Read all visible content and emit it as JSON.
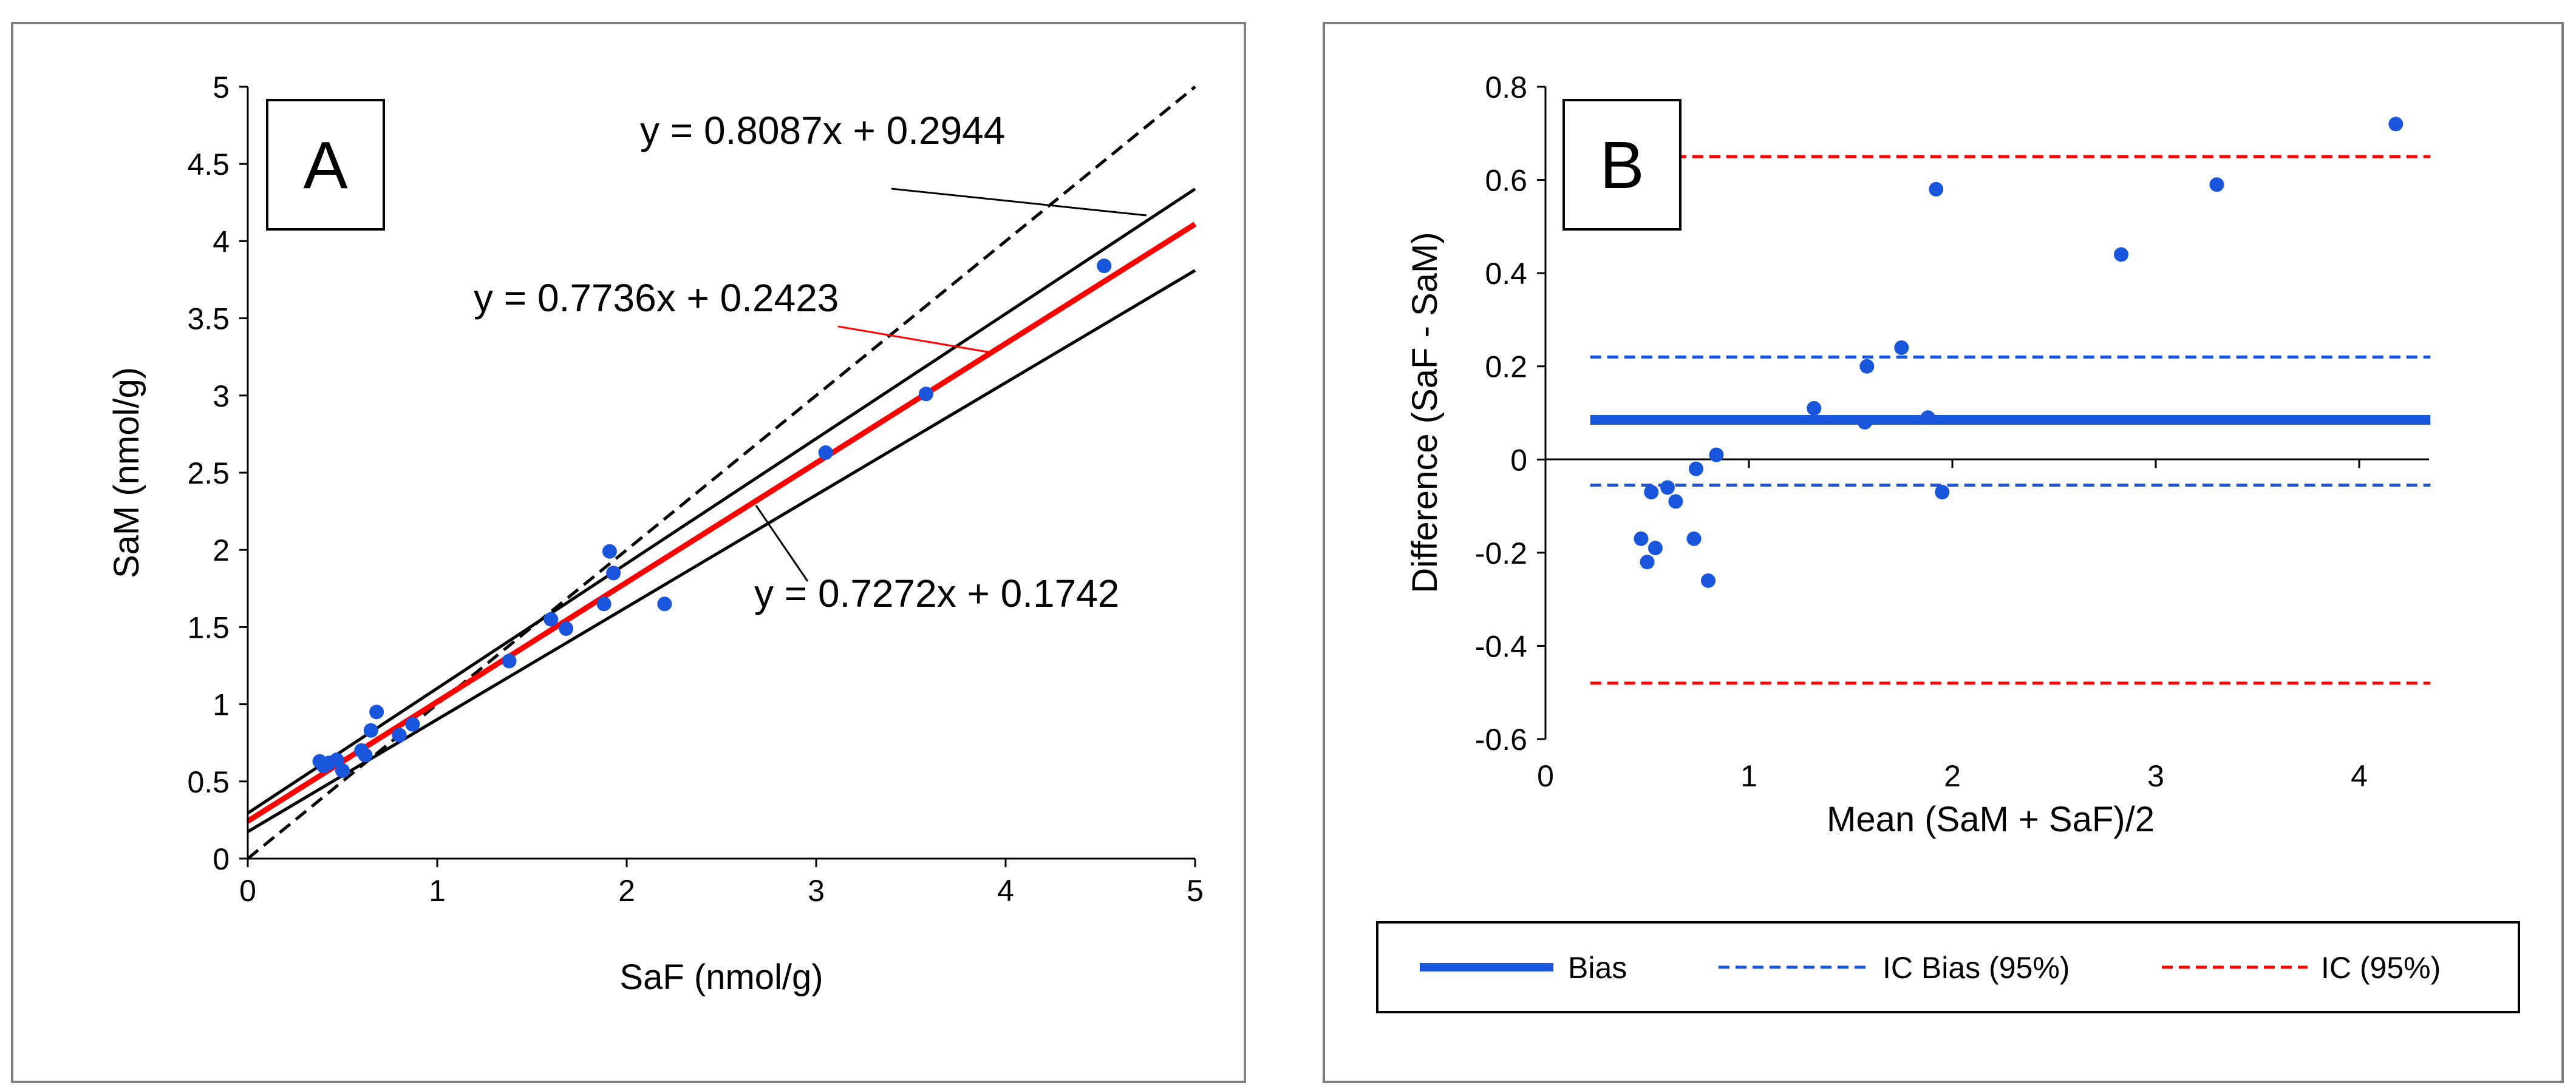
{
  "chart_data": [
    {
      "panel": "A",
      "type": "scatter",
      "xlabel": "SaF (nmol/g)",
      "ylabel": "SaM (nmol/g)",
      "xlim": [
        0,
        5
      ],
      "ylim": [
        0,
        5
      ],
      "xticks": [
        "0",
        "1",
        "2",
        "3",
        "4",
        "5"
      ],
      "yticks": [
        "0",
        "0.5",
        "1",
        "1.5",
        "2",
        "2.5",
        "3",
        "3.5",
        "4",
        "4.5",
        "5"
      ],
      "grid": false,
      "points": [
        {
          "x": 0.38,
          "y": 0.63
        },
        {
          "x": 0.4,
          "y": 0.6
        },
        {
          "x": 0.43,
          "y": 0.62
        },
        {
          "x": 0.47,
          "y": 0.64
        },
        {
          "x": 0.5,
          "y": 0.57
        },
        {
          "x": 0.6,
          "y": 0.7
        },
        {
          "x": 0.62,
          "y": 0.67
        },
        {
          "x": 0.65,
          "y": 0.83
        },
        {
          "x": 0.68,
          "y": 0.95
        },
        {
          "x": 0.8,
          "y": 0.8
        },
        {
          "x": 0.87,
          "y": 0.87
        },
        {
          "x": 1.38,
          "y": 1.28
        },
        {
          "x": 1.6,
          "y": 1.55
        },
        {
          "x": 1.68,
          "y": 1.49
        },
        {
          "x": 1.88,
          "y": 1.65
        },
        {
          "x": 1.91,
          "y": 1.99
        },
        {
          "x": 1.93,
          "y": 1.85
        },
        {
          "x": 2.2,
          "y": 1.65
        },
        {
          "x": 3.05,
          "y": 2.63
        },
        {
          "x": 3.58,
          "y": 3.01
        },
        {
          "x": 4.52,
          "y": 3.84
        }
      ],
      "lines": [
        {
          "kind": "identity",
          "slope": 1,
          "intercept": 0,
          "style": "dashed",
          "color": "#000000"
        },
        {
          "kind": "upper",
          "slope": 0.8087,
          "intercept": 0.2944,
          "style": "solid",
          "color": "#000000"
        },
        {
          "kind": "fit",
          "slope": 0.7736,
          "intercept": 0.2423,
          "style": "solid",
          "color": "#ff0000"
        },
        {
          "kind": "lower",
          "slope": 0.7272,
          "intercept": 0.1742,
          "style": "solid",
          "color": "#000000"
        }
      ],
      "annotations": [
        "y = 0.8087x + 0.2944",
        "y = 0.7736x + 0.2423",
        "y = 0.7272x + 0.1742"
      ]
    },
    {
      "panel": "B",
      "type": "scatter",
      "xlabel": "Mean (SaM + SaF)/2",
      "ylabel": "Difference (SaF - SaM)",
      "xlim": [
        0,
        4.5
      ],
      "ylim": [
        -0.6,
        0.8
      ],
      "xticks": [
        "0",
        "1",
        "2",
        "3",
        "4"
      ],
      "yticks": [
        "-0.6",
        "-0.4",
        "-0.2",
        "0",
        "0.2",
        "0.4",
        "0.6",
        "0.8"
      ],
      "grid": false,
      "points": [
        {
          "x": 0.47,
          "y": -0.17
        },
        {
          "x": 0.5,
          "y": -0.22
        },
        {
          "x": 0.52,
          "y": -0.07
        },
        {
          "x": 0.54,
          "y": -0.19
        },
        {
          "x": 0.6,
          "y": -0.06
        },
        {
          "x": 0.64,
          "y": -0.09
        },
        {
          "x": 0.73,
          "y": -0.17
        },
        {
          "x": 0.74,
          "y": -0.02
        },
        {
          "x": 0.8,
          "y": -0.26
        },
        {
          "x": 0.84,
          "y": 0.01
        },
        {
          "x": 1.32,
          "y": 0.11
        },
        {
          "x": 1.57,
          "y": 0.08
        },
        {
          "x": 1.58,
          "y": 0.2
        },
        {
          "x": 1.75,
          "y": 0.24
        },
        {
          "x": 1.88,
          "y": 0.09
        },
        {
          "x": 1.92,
          "y": 0.58
        },
        {
          "x": 1.95,
          "y": -0.07
        },
        {
          "x": 2.83,
          "y": 0.44
        },
        {
          "x": 3.3,
          "y": 0.59
        },
        {
          "x": 4.18,
          "y": 0.72
        }
      ],
      "hlines": [
        {
          "key": "bias",
          "y": 0.085,
          "style": "solid",
          "color": "#1a56db"
        },
        {
          "key": "ic_bias",
          "y": 0.22,
          "style": "dashed",
          "color": "#1a56db"
        },
        {
          "key": "ic_bias",
          "y": -0.055,
          "style": "dashed",
          "color": "#1a56db"
        },
        {
          "key": "ic",
          "y": 0.65,
          "style": "dashed",
          "color": "#ff0000"
        },
        {
          "key": "ic",
          "y": -0.48,
          "style": "dashed",
          "color": "#ff0000"
        }
      ],
      "hline_x_range": [
        0.22,
        4.35
      ],
      "legend": {
        "placement": "bottom",
        "entries": [
          {
            "key": "bias",
            "label": "Bias",
            "style": "solid",
            "color": "#1a56db"
          },
          {
            "key": "ic_bias",
            "label": "IC Bias (95%)",
            "style": "dashed",
            "color": "#1a56db"
          },
          {
            "key": "ic",
            "label": "IC (95%)",
            "style": "dashed",
            "color": "#ff0000"
          }
        ]
      }
    }
  ],
  "colors": {
    "points": "#1a56db",
    "fit": "#ff0000",
    "frame": "#7f7f7f"
  }
}
